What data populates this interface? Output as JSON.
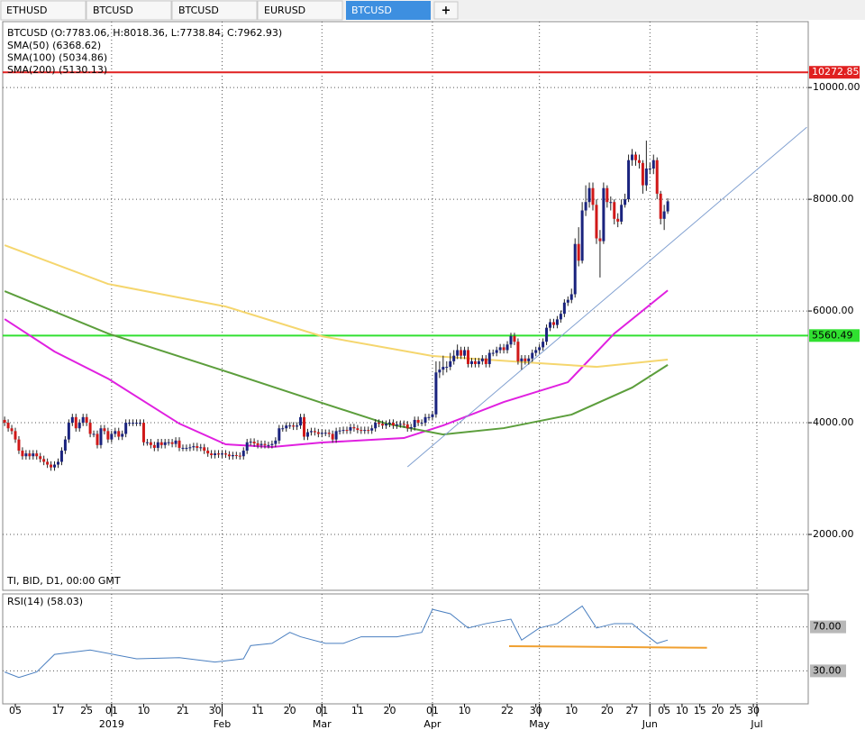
{
  "tabs": [
    "ETHUSD",
    "BTCUSD",
    "BTCUSD",
    "EURUSD",
    "BTCUSD"
  ],
  "new_tab": "+",
  "chart_data": [
    {
      "type": "candlestick",
      "title": "BTCUSD (O:7783.06, H:8018.36, L:7738.84, C:7962.93)",
      "subtitle": "TI, BID, D1, 00:00 GMT",
      "up_color": "#1a237e",
      "down_color": "#d01818",
      "xlim": [
        0.46,
        226.4
      ],
      "ylim": [
        1000,
        11180
      ],
      "yticks": [
        {
          "value": 2000,
          "label": "2000.00"
        },
        {
          "value": 4000,
          "label": "4000.00"
        },
        {
          "value": 6000,
          "label": "6000.00"
        },
        {
          "value": 8000,
          "label": "8000.00"
        },
        {
          "value": 10000,
          "label": "10000.00"
        }
      ],
      "grid": true,
      "x": [
        1,
        2,
        3,
        4,
        5,
        6,
        7,
        8,
        9,
        10,
        11,
        12,
        13,
        14,
        15,
        16,
        17,
        18,
        19,
        20,
        21,
        22,
        23,
        24,
        25,
        26,
        27,
        28,
        29,
        30,
        31,
        32,
        33,
        34,
        35,
        36,
        37,
        38,
        39,
        40,
        41,
        42,
        43,
        44,
        45,
        46,
        47,
        48,
        49,
        50,
        51,
        52,
        53,
        54,
        55,
        56,
        57,
        58,
        59,
        60,
        61,
        62,
        63,
        64,
        65,
        66,
        67,
        68,
        69,
        70,
        71,
        72,
        73,
        74,
        75,
        76,
        77,
        78,
        79,
        80,
        81,
        82,
        83,
        84,
        85,
        86,
        87,
        88,
        89,
        90,
        91,
        92,
        93,
        94,
        95,
        96,
        97,
        98,
        99,
        100,
        101,
        102,
        103,
        104,
        105,
        106,
        107,
        108,
        109,
        110,
        111,
        112,
        113,
        114,
        115,
        116,
        117,
        118,
        119,
        120,
        121,
        122,
        123,
        124,
        125,
        126,
        127,
        128,
        129,
        130,
        131,
        132,
        133,
        134,
        135,
        136,
        137,
        138,
        139,
        140,
        141,
        142,
        143,
        144,
        145,
        146,
        147,
        148,
        149,
        150,
        151,
        152,
        153,
        154,
        155,
        156,
        157,
        158,
        159,
        160,
        161,
        162,
        163,
        164,
        165,
        166,
        167,
        168,
        169,
        170,
        171,
        172,
        173,
        174,
        175,
        176,
        177,
        178,
        179,
        180,
        181,
        182,
        183,
        184,
        185,
        186,
        187
      ],
      "open": [
        4050,
        4000,
        3900,
        3850,
        3700,
        3500,
        3400,
        3450,
        3400,
        3450,
        3400,
        3350,
        3300,
        3250,
        3200,
        3250,
        3300,
        3500,
        3700,
        4000,
        4100,
        3900,
        4000,
        4100,
        4000,
        3800,
        3800,
        3600,
        3900,
        3850,
        3700,
        3800,
        3850,
        3750,
        3800,
        4000,
        4000,
        4000,
        4000,
        4000,
        3650,
        3650,
        3600,
        3550,
        3650,
        3600,
        3650,
        3650,
        3620,
        3680,
        3550,
        3550,
        3550,
        3560,
        3580,
        3550,
        3560,
        3500,
        3450,
        3420,
        3450,
        3430,
        3450,
        3430,
        3400,
        3420,
        3410,
        3400,
        3500,
        3650,
        3660,
        3630,
        3600,
        3620,
        3600,
        3600,
        3620,
        3680,
        3900,
        3900,
        3950,
        3950,
        3930,
        3950,
        4100,
        3750,
        3830,
        3850,
        3830,
        3800,
        3820,
        3820,
        3800,
        3700,
        3850,
        3860,
        3870,
        3860,
        3920,
        3900,
        3870,
        3860,
        3870,
        3860,
        3900,
        4000,
        3980,
        3950,
        3980,
        4000,
        3950,
        3970,
        3980,
        3970,
        3900,
        3920,
        4050,
        4000,
        4000,
        4100,
        4100,
        4150,
        4900,
        4950,
        5000,
        5000,
        5100,
        5200,
        5300,
        5200,
        5300,
        5050,
        5100,
        5050,
        5100,
        5150,
        5050,
        5250,
        5250,
        5300,
        5350,
        5300,
        5400,
        5550,
        5450,
        5100,
        5150,
        5100,
        5150,
        5250,
        5300,
        5350,
        5450,
        5700,
        5800,
        5750,
        5850,
        5950,
        6150,
        6200,
        6300,
        7200,
        6900,
        7800,
        7950,
        8200,
        7900,
        7300,
        7250,
        8200,
        7950,
        7950,
        7650,
        7600,
        7900,
        8000,
        8700,
        8800,
        8700,
        8650,
        8250,
        8550,
        8550,
        8700,
        8100,
        7650,
        7783.06
      ],
      "high": [
        4110,
        4060,
        3960,
        3910,
        3760,
        3560,
        3510,
        3510,
        3510,
        3510,
        3460,
        3410,
        3360,
        3310,
        3310,
        3360,
        3560,
        3760,
        4060,
        4160,
        4160,
        4060,
        4160,
        4160,
        4060,
        3860,
        3860,
        3960,
        3960,
        3910,
        3860,
        3910,
        3910,
        3860,
        4060,
        4060,
        4060,
        4060,
        4060,
        4060,
        3710,
        3710,
        3660,
        3710,
        3710,
        3710,
        3710,
        3710,
        3740,
        3740,
        3610,
        3610,
        3620,
        3640,
        3640,
        3620,
        3620,
        3560,
        3510,
        3510,
        3510,
        3510,
        3510,
        3490,
        3480,
        3480,
        3470,
        3560,
        3710,
        3720,
        3720,
        3690,
        3680,
        3680,
        3660,
        3680,
        3740,
        3960,
        3960,
        4010,
        4010,
        4010,
        4010,
        4160,
        4160,
        3890,
        3910,
        3910,
        3890,
        3880,
        3880,
        3880,
        3860,
        3910,
        3920,
        3930,
        3930,
        3980,
        3980,
        3960,
        3930,
        3930,
        3930,
        3960,
        4060,
        4060,
        4040,
        4040,
        4060,
        4060,
        4030,
        4040,
        4040,
        4030,
        3980,
        4110,
        4110,
        4060,
        4160,
        4160,
        4210,
        5100,
        5100,
        5200,
        5100,
        5250,
        5300,
        5400,
        5360,
        5360,
        5360,
        5160,
        5160,
        5160,
        5210,
        5210,
        5310,
        5310,
        5360,
        5410,
        5410,
        5460,
        5610,
        5610,
        5510,
        5210,
        5210,
        5210,
        5310,
        5360,
        5410,
        5510,
        5760,
        5860,
        5860,
        5910,
        6010,
        6210,
        6260,
        6400,
        7300,
        7500,
        7950,
        8250,
        8300,
        8300,
        8000,
        7450,
        8300,
        8250,
        8050,
        8000,
        7750,
        8000,
        8100,
        8800,
        8900,
        8850,
        8800,
        8700,
        9050,
        8650,
        8800,
        8750,
        8150,
        7900,
        8018.36
      ],
      "low": [
        3940,
        3840,
        3790,
        3640,
        3440,
        3340,
        3340,
        3340,
        3340,
        3340,
        3290,
        3240,
        3190,
        3140,
        3140,
        3190,
        3240,
        3440,
        3640,
        3940,
        3840,
        3840,
        3940,
        3940,
        3740,
        3740,
        3540,
        3540,
        3790,
        3640,
        3640,
        3740,
        3690,
        3690,
        3740,
        3940,
        3940,
        3940,
        3940,
        3590,
        3590,
        3540,
        3490,
        3490,
        3540,
        3540,
        3590,
        3560,
        3560,
        3490,
        3490,
        3490,
        3490,
        3500,
        3490,
        3490,
        3440,
        3390,
        3360,
        3360,
        3370,
        3370,
        3370,
        3340,
        3340,
        3350,
        3340,
        3340,
        3440,
        3590,
        3570,
        3540,
        3540,
        3540,
        3540,
        3540,
        3560,
        3620,
        3840,
        3840,
        3890,
        3870,
        3870,
        3890,
        3690,
        3690,
        3770,
        3770,
        3740,
        3740,
        3760,
        3740,
        3640,
        3640,
        3790,
        3800,
        3800,
        3800,
        3840,
        3810,
        3800,
        3800,
        3800,
        3800,
        3840,
        3920,
        3890,
        3890,
        3920,
        3890,
        3890,
        3910,
        3910,
        3840,
        3840,
        3860,
        3940,
        3940,
        3940,
        4040,
        4040,
        4090,
        4800,
        4850,
        4900,
        4940,
        5040,
        5140,
        5140,
        5140,
        4990,
        4990,
        4990,
        4990,
        5040,
        4990,
        4990,
        5190,
        5190,
        5240,
        5240,
        5240,
        5340,
        5390,
        5040,
        4950,
        5040,
        5040,
        5090,
        5190,
        5240,
        5290,
        5390,
        5640,
        5690,
        5690,
        5790,
        5890,
        6090,
        6140,
        6240,
        6800,
        6850,
        7700,
        7850,
        7800,
        7200,
        6600,
        7200,
        7850,
        7800,
        7550,
        7500,
        7550,
        7850,
        7950,
        8600,
        8600,
        8550,
        8100,
        8150,
        8450,
        8450,
        8000,
        7550,
        7450,
        7738.84
      ],
      "close": [
        4000,
        3900,
        3850,
        3700,
        3500,
        3400,
        3450,
        3400,
        3450,
        3400,
        3350,
        3300,
        3250,
        3200,
        3250,
        3300,
        3500,
        3700,
        4000,
        4100,
        3900,
        4000,
        4100,
        4000,
        3800,
        3800,
        3600,
        3900,
        3850,
        3700,
        3800,
        3850,
        3750,
        3800,
        4000,
        4000,
        4000,
        4000,
        4000,
        3650,
        3650,
        3600,
        3550,
        3650,
        3600,
        3650,
        3650,
        3620,
        3680,
        3550,
        3550,
        3550,
        3560,
        3580,
        3550,
        3560,
        3500,
        3450,
        3420,
        3450,
        3430,
        3450,
        3430,
        3400,
        3420,
        3410,
        3400,
        3500,
        3650,
        3660,
        3630,
        3600,
        3620,
        3600,
        3600,
        3620,
        3680,
        3900,
        3900,
        3950,
        3950,
        3930,
        3950,
        4100,
        3750,
        3830,
        3850,
        3830,
        3800,
        3820,
        3820,
        3800,
        3700,
        3850,
        3860,
        3870,
        3860,
        3920,
        3900,
        3870,
        3860,
        3870,
        3860,
        3900,
        4000,
        3980,
        3950,
        3980,
        4000,
        3950,
        3970,
        3980,
        3970,
        3900,
        3920,
        4050,
        4000,
        4000,
        4100,
        4100,
        4150,
        4900,
        4950,
        5000,
        5000,
        5100,
        5200,
        5300,
        5200,
        5300,
        5050,
        5100,
        5050,
        5100,
        5150,
        5050,
        5250,
        5250,
        5300,
        5350,
        5300,
        5400,
        5550,
        5450,
        5100,
        5150,
        5100,
        5150,
        5250,
        5300,
        5350,
        5450,
        5700,
        5800,
        5750,
        5850,
        5950,
        6150,
        6200,
        6300,
        7200,
        6900,
        7800,
        7950,
        8200,
        7900,
        7300,
        7250,
        8200,
        7950,
        7950,
        7650,
        7600,
        7900,
        8000,
        8700,
        8800,
        8700,
        8650,
        8250,
        8550,
        8550,
        8700,
        8100,
        7650,
        7783.06,
        7962.93
      ],
      "series": [
        {
          "name": "SMA(50) (6368.62)",
          "color": "#e020e0",
          "x": [
            1,
            15,
            30,
            50,
            63,
            76,
            90,
            113,
            124,
            141,
            159,
            172,
            187
          ],
          "values": [
            5855,
            5274,
            4790,
            3984,
            3613,
            3565,
            3645,
            3726,
            3952,
            4371,
            4726,
            5597,
            6368.62
          ]
        },
        {
          "name": "SMA(100) (5034.86)",
          "color": "#5c9e3c",
          "x": [
            1,
            30,
            63,
            90,
            108,
            124,
            141,
            160,
            177,
            187
          ],
          "values": [
            6355,
            5597,
            4919,
            4355,
            3984,
            3790,
            3903,
            4145,
            4629,
            5034.86
          ]
        },
        {
          "name": "SMA(200) (5130.13)",
          "color": "#f5d66e",
          "x": [
            1,
            30,
            63,
            90,
            121,
            151,
            167,
            187
          ],
          "values": [
            7177,
            6484,
            6080,
            5548,
            5194,
            5065,
            5000,
            5130.13
          ]
        }
      ],
      "levels": [
        {
          "value": 10272.85,
          "color": "#e02020"
        },
        {
          "value": 5560.49,
          "color": "#30e030"
        }
      ],
      "trendline": {
        "x": [
          114,
          226
        ],
        "values": [
          3210,
          9290
        ],
        "color": "#7f9fd0"
      }
    },
    {
      "type": "line",
      "title": "RSI(14) (58.03)",
      "xlim": [
        0.46,
        226.4
      ],
      "ylim": [
        0,
        100
      ],
      "yticks": [
        {
          "value": 70,
          "label": "70.00"
        },
        {
          "value": 30,
          "label": "30.00"
        }
      ],
      "xticks": [
        {
          "value": 4,
          "label": "05"
        },
        {
          "value": 16,
          "label": "17"
        },
        {
          "value": 24,
          "label": "25"
        },
        {
          "value": 31,
          "label": "01"
        },
        {
          "value": 40,
          "label": "10"
        },
        {
          "value": 51,
          "label": "21"
        },
        {
          "value": 60,
          "label": "30"
        },
        {
          "value": 72,
          "label": "11"
        },
        {
          "value": 81,
          "label": "20"
        },
        {
          "value": 90,
          "label": "01"
        },
        {
          "value": 100,
          "label": "11"
        },
        {
          "value": 109,
          "label": "20"
        },
        {
          "value": 121,
          "label": "01"
        },
        {
          "value": 130,
          "label": "10"
        },
        {
          "value": 142,
          "label": "22"
        },
        {
          "value": 150,
          "label": "30"
        },
        {
          "value": 160,
          "label": "10"
        },
        {
          "value": 170,
          "label": "20"
        },
        {
          "value": 177,
          "label": "27"
        },
        {
          "value": 186,
          "label": "05"
        },
        {
          "value": 191,
          "label": "10"
        },
        {
          "value": 196,
          "label": "15"
        },
        {
          "value": 201,
          "label": "20"
        },
        {
          "value": 206,
          "label": "25"
        },
        {
          "value": 211,
          "label": "30"
        }
      ],
      "month_ticks": [
        {
          "value": 31,
          "label": "2019"
        },
        {
          "value": 62,
          "label": "Feb"
        },
        {
          "value": 90,
          "label": "Mar"
        },
        {
          "value": 121,
          "label": "Apr"
        },
        {
          "value": 151,
          "label": "May"
        },
        {
          "value": 182,
          "label": "Jun"
        },
        {
          "value": 212,
          "label": "Jul"
        }
      ],
      "series": [
        {
          "color": "#4a7fc0",
          "x": [
            1,
            5,
            10,
            15,
            25,
            38,
            50,
            60,
            68,
            70,
            76,
            81,
            84,
            91,
            96,
            101,
            111,
            118,
            121,
            126,
            131,
            136,
            143,
            146,
            151,
            156,
            163,
            167,
            172,
            177,
            180,
            184,
            187
          ],
          "values": [
            29,
            24,
            29,
            45,
            49,
            41,
            42,
            38,
            41,
            53,
            55,
            65,
            61,
            55,
            55,
            61,
            61,
            65,
            86,
            82,
            69,
            73,
            77,
            58,
            69,
            73,
            89,
            69,
            73,
            73,
            65,
            55,
            58.03
          ]
        }
      ],
      "support_line": {
        "x": [
          142.5,
          198
        ],
        "values": [
          52.5,
          51
        ],
        "color": "#f0a030"
      }
    }
  ]
}
